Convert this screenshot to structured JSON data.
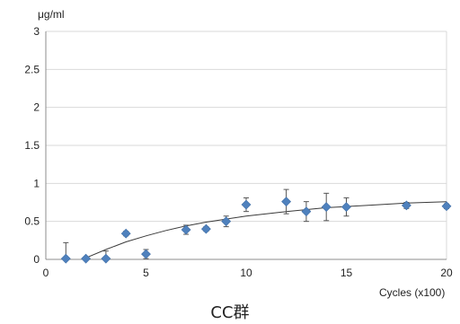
{
  "chart_data": {
    "type": "scatter",
    "title": "",
    "caption": "CC群",
    "ylabel": "μg/ml",
    "xlabel": "Cycles (x100)",
    "xlim": [
      0,
      20
    ],
    "ylim": [
      0,
      3
    ],
    "x_ticks": [
      "0",
      "5",
      "10",
      "15",
      "20"
    ],
    "x_tick_values": [
      0,
      5,
      10,
      15,
      20
    ],
    "y_ticks": [
      "0",
      "0.5",
      "1",
      "1.5",
      "2",
      "2.5",
      "3"
    ],
    "y_tick_values": [
      0,
      0.5,
      1,
      1.5,
      2,
      2.5,
      3
    ],
    "grid": "horizontal",
    "marker": "diamond",
    "marker_color": "#4f81bd",
    "trendline": true,
    "series": [
      {
        "points": [
          {
            "x": 1,
            "y": 0.01,
            "err": 0.21
          },
          {
            "x": 2,
            "y": 0.01,
            "err": 0.02
          },
          {
            "x": 3,
            "y": 0.01,
            "err": 0.1
          },
          {
            "x": 4,
            "y": 0.34,
            "err": 0.03
          },
          {
            "x": 5,
            "y": 0.07,
            "err": 0.06
          },
          {
            "x": 7,
            "y": 0.39,
            "err": 0.06
          },
          {
            "x": 8,
            "y": 0.4,
            "err": 0.03
          },
          {
            "x": 9,
            "y": 0.5,
            "err": 0.07
          },
          {
            "x": 10,
            "y": 0.72,
            "err": 0.09
          },
          {
            "x": 12,
            "y": 0.76,
            "err": 0.16
          },
          {
            "x": 13,
            "y": 0.63,
            "err": 0.13
          },
          {
            "x": 14,
            "y": 0.69,
            "err": 0.18
          },
          {
            "x": 15,
            "y": 0.69,
            "err": 0.12
          },
          {
            "x": 18,
            "y": 0.71,
            "err": 0.04
          },
          {
            "x": 20,
            "y": 0.7,
            "err": 0.03
          }
        ],
        "trend": [
          {
            "x": 2,
            "y": 0.02
          },
          {
            "x": 3,
            "y": 0.13
          },
          {
            "x": 4,
            "y": 0.23
          },
          {
            "x": 5,
            "y": 0.31
          },
          {
            "x": 6,
            "y": 0.38
          },
          {
            "x": 7,
            "y": 0.44
          },
          {
            "x": 8,
            "y": 0.49
          },
          {
            "x": 9,
            "y": 0.53
          },
          {
            "x": 10,
            "y": 0.57
          },
          {
            "x": 12,
            "y": 0.63
          },
          {
            "x": 14,
            "y": 0.68
          },
          {
            "x": 16,
            "y": 0.71
          },
          {
            "x": 18,
            "y": 0.74
          },
          {
            "x": 20,
            "y": 0.76
          }
        ]
      }
    ]
  }
}
